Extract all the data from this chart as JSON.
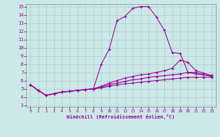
{
  "xlabel": "Windchill (Refroidissement éolien,°C)",
  "background_color": "#cce8e8",
  "line_color": "#990099",
  "xlim": [
    -0.5,
    23.5
  ],
  "ylim": [
    2.8,
    15.3
  ],
  "xticks": [
    0,
    1,
    2,
    3,
    4,
    5,
    6,
    7,
    8,
    9,
    10,
    11,
    12,
    13,
    14,
    15,
    16,
    17,
    18,
    19,
    20,
    21,
    22,
    23
  ],
  "yticks": [
    3,
    4,
    5,
    6,
    7,
    8,
    9,
    10,
    11,
    12,
    13,
    14,
    15
  ],
  "line1_x": [
    0,
    1,
    2,
    3,
    4,
    5,
    6,
    7,
    8,
    9,
    10,
    11,
    12,
    13,
    14,
    15,
    16,
    17,
    18,
    19,
    20,
    21,
    22,
    23
  ],
  "line1_y": [
    5.5,
    4.8,
    4.2,
    4.4,
    4.6,
    4.7,
    4.8,
    4.9,
    5.0,
    8.0,
    9.8,
    13.3,
    13.8,
    14.8,
    15.0,
    15.0,
    13.7,
    12.1,
    9.4,
    9.3,
    7.0,
    7.0,
    6.7,
    6.5
  ],
  "line2_x": [
    0,
    1,
    2,
    3,
    4,
    5,
    6,
    7,
    8,
    9,
    10,
    11,
    12,
    13,
    14,
    15,
    16,
    17,
    18,
    19,
    20,
    21,
    22,
    23
  ],
  "line2_y": [
    5.5,
    4.8,
    4.2,
    4.4,
    4.6,
    4.7,
    4.8,
    4.9,
    5.0,
    5.3,
    5.7,
    6.0,
    6.3,
    6.5,
    6.7,
    6.8,
    7.0,
    7.2,
    7.5,
    8.5,
    8.2,
    7.2,
    6.9,
    6.6
  ],
  "line3_x": [
    0,
    1,
    2,
    3,
    4,
    5,
    6,
    7,
    8,
    9,
    10,
    11,
    12,
    13,
    14,
    15,
    16,
    17,
    18,
    19,
    20,
    21,
    22,
    23
  ],
  "line3_y": [
    5.5,
    4.8,
    4.2,
    4.4,
    4.6,
    4.7,
    4.8,
    4.9,
    5.0,
    5.2,
    5.5,
    5.7,
    5.9,
    6.1,
    6.2,
    6.4,
    6.5,
    6.6,
    6.7,
    6.8,
    7.0,
    6.8,
    6.7,
    6.6
  ],
  "line4_x": [
    0,
    1,
    2,
    3,
    4,
    5,
    6,
    7,
    8,
    9,
    10,
    11,
    12,
    13,
    14,
    15,
    16,
    17,
    18,
    19,
    20,
    21,
    22,
    23
  ],
  "line4_y": [
    5.5,
    4.8,
    4.2,
    4.4,
    4.6,
    4.7,
    4.8,
    4.9,
    5.0,
    5.1,
    5.3,
    5.5,
    5.6,
    5.7,
    5.8,
    5.9,
    6.0,
    6.1,
    6.2,
    6.3,
    6.4,
    6.4,
    6.4,
    6.4
  ],
  "grid_color": "#aacece",
  "marker": "+"
}
